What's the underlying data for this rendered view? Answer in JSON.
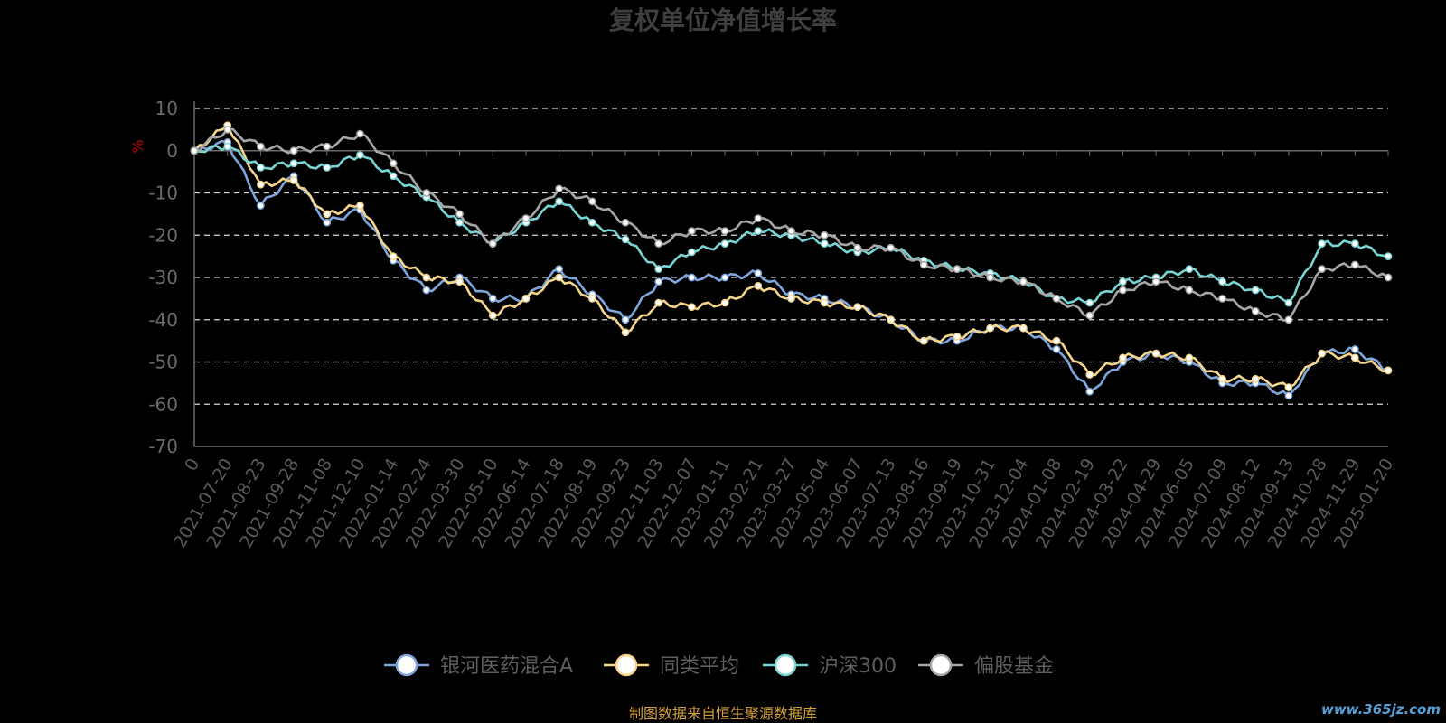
{
  "chart_data": {
    "type": "line",
    "title": "复权单位净值增长率",
    "ylabel": "%",
    "ylim": [
      -70,
      10
    ],
    "yticks": [
      10,
      0,
      -10,
      -20,
      -30,
      -40,
      -50,
      -60,
      -70
    ],
    "grid": true,
    "legend_position": "bottom",
    "x": [
      "0",
      "2021-07-20",
      "2021-08-23",
      "2021-09-28",
      "2021-11-08",
      "2021-12-10",
      "2022-01-14",
      "2022-02-24",
      "2022-03-30",
      "2022-05-10",
      "2022-06-14",
      "2022-07-18",
      "2022-08-19",
      "2022-09-23",
      "2022-11-03",
      "2022-12-07",
      "2023-01-11",
      "2023-02-21",
      "2023-03-27",
      "2023-05-04",
      "2023-06-07",
      "2023-07-13",
      "2023-08-16",
      "2023-09-19",
      "2023-10-31",
      "2023-12-04",
      "2024-01-08",
      "2024-02-19",
      "2024-03-22",
      "2024-04-29",
      "2024-06-05",
      "2024-07-09",
      "2024-08-12",
      "2024-09-13",
      "2024-10-28",
      "2024-11-29",
      "2025-01-20"
    ],
    "series": [
      {
        "name": "银河医药混合A",
        "color": "#7ea6dc",
        "values": [
          0,
          2,
          -13,
          -6,
          -17,
          -14,
          -26,
          -33,
          -30,
          -35,
          -35,
          -28,
          -34,
          -40,
          -31,
          -30,
          -30,
          -29,
          -34,
          -35,
          -37,
          -40,
          -45,
          -45,
          -42,
          -42,
          -47,
          -57,
          -50,
          -48,
          -50,
          -55,
          -55,
          -58,
          -48,
          -47,
          -52
        ]
      },
      {
        "name": "同类平均",
        "color": "#f5d48c",
        "values": [
          0,
          6,
          -8,
          -7,
          -15,
          -13,
          -25,
          -30,
          -31,
          -39,
          -35,
          -30,
          -35,
          -43,
          -36,
          -37,
          -36,
          -32,
          -35,
          -36,
          -37,
          -40,
          -45,
          -44,
          -42,
          -42,
          -45,
          -53,
          -49,
          -48,
          -49,
          -54,
          -54,
          -56,
          -48,
          -49,
          -52
        ]
      },
      {
        "name": "沪深300",
        "color": "#7ad4d4",
        "values": [
          0,
          1,
          -4,
          -3,
          -4,
          -1,
          -6,
          -11,
          -17,
          -22,
          -17,
          -12,
          -17,
          -21,
          -28,
          -24,
          -22,
          -19,
          -20,
          -22,
          -24,
          -23,
          -26,
          -28,
          -29,
          -31,
          -35,
          -36,
          -31,
          -30,
          -28,
          -31,
          -33,
          -36,
          -22,
          -22,
          -25
        ]
      },
      {
        "name": "偏股基金",
        "color": "#a6a6a6",
        "values": [
          0,
          5,
          1,
          0,
          1,
          4,
          -3,
          -10,
          -15,
          -22,
          -16,
          -9,
          -12,
          -17,
          -22,
          -19,
          -19,
          -16,
          -19,
          -20,
          -23,
          -23,
          -27,
          -28,
          -30,
          -31,
          -35,
          -39,
          -33,
          -31,
          -33,
          -35,
          -38,
          -40,
          -28,
          -27,
          -30
        ]
      }
    ]
  },
  "legend": [
    {
      "label": "银河医药混合A",
      "color": "#7ea6dc"
    },
    {
      "label": "同类平均",
      "color": "#f5d48c"
    },
    {
      "label": "沪深300",
      "color": "#7ad4d4"
    },
    {
      "label": "偏股基金",
      "color": "#a6a6a6"
    }
  ],
  "source": "制图数据来自恒生聚源数据库",
  "watermark": "www.365jz.com"
}
